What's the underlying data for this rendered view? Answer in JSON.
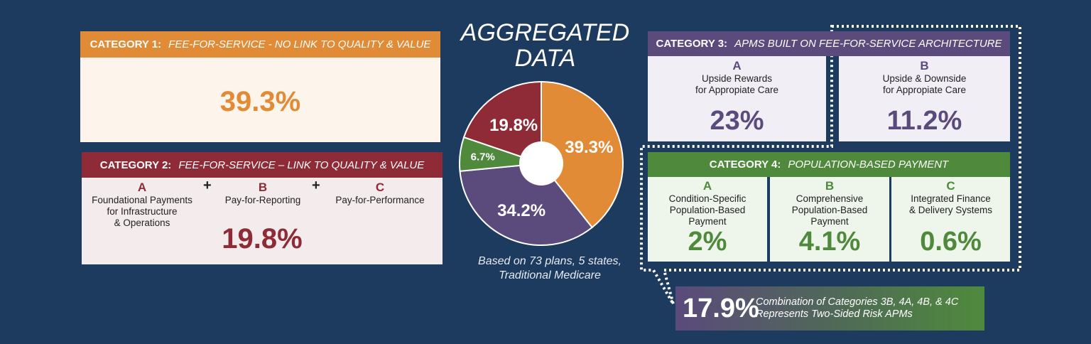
{
  "colors": {
    "background": "#1d3a5f",
    "cat1": "#e28b37",
    "cat2": "#8e2b36",
    "cat3": "#5b4a7c",
    "cat4": "#4f8a3c",
    "cat1_bg": "#fdf5ec",
    "cat2_bg": "#f4ebec",
    "cat3_bg": "#f1eef6",
    "cat4_bg": "#eef5ea"
  },
  "category1": {
    "label": "CATEGORY 1:",
    "subtitle": "FEE-FOR-SERVICE - NO LINK TO QUALITY & VALUE",
    "value": "39.3%"
  },
  "category2": {
    "label": "CATEGORY 2:",
    "subtitle": "FEE-FOR-SERVICE – LINK TO QUALITY & VALUE",
    "plus": "+",
    "items": [
      {
        "letter": "A",
        "line1": "Foundational Payments",
        "line2": "for Infrastructure",
        "line3": "& Operations"
      },
      {
        "letter": "B",
        "line1": "Pay-for-Reporting"
      },
      {
        "letter": "C",
        "line1": "Pay-for-Performance"
      }
    ],
    "value": "19.8%"
  },
  "center": {
    "title_line1": "AGGREGATED",
    "title_line2": "DATA",
    "note_line1": "Based on 73 plans, 5 states,",
    "note_line2": "Traditional Medicare"
  },
  "chart_data": {
    "type": "pie",
    "title": "AGGREGATED DATA",
    "series": [
      {
        "name": "Category 1",
        "value": 39.3,
        "label": "39.3%",
        "color": "#e28b37"
      },
      {
        "name": "Category 3",
        "value": 34.2,
        "label": "34.2%",
        "color": "#5b4a7c"
      },
      {
        "name": "Category 4",
        "value": 6.7,
        "label": "6.7%",
        "color": "#4f8a3c"
      },
      {
        "name": "Category 2",
        "value": 19.8,
        "label": "19.8%",
        "color": "#8e2b36"
      }
    ]
  },
  "category3": {
    "label": "CATEGORY 3:",
    "subtitle": "APMS BUILT ON FEE-FOR-SERVICE ARCHITECTURE",
    "items": [
      {
        "letter": "A",
        "line1": "Upside Rewards",
        "line2": "for Appropiate Care",
        "value": "23%"
      },
      {
        "letter": "B",
        "line1": "Upside & Downside",
        "line2": "for Appropiate Care",
        "value": "11.2%"
      }
    ]
  },
  "category4": {
    "label": "CATEGORY 4:",
    "subtitle": "POPULATION-BASED PAYMENT",
    "items": [
      {
        "letter": "A",
        "line1": "Condition-Specific",
        "line2": "Population-Based",
        "line3": "Payment",
        "value": "2%"
      },
      {
        "letter": "B",
        "line1": "Comprehensive",
        "line2": "Population-Based",
        "line3": "Payment",
        "value": "4.1%"
      },
      {
        "letter": "C",
        "line1": "Integrated Finance",
        "line2": "& Delivery Systems",
        "line3": "",
        "value": "0.6%"
      }
    ]
  },
  "summary": {
    "value": "17.9%",
    "line1": "Combination of Categories 3B, 4A, 4B, & 4C",
    "line2": "Represents Two-Sided Risk APMs"
  }
}
